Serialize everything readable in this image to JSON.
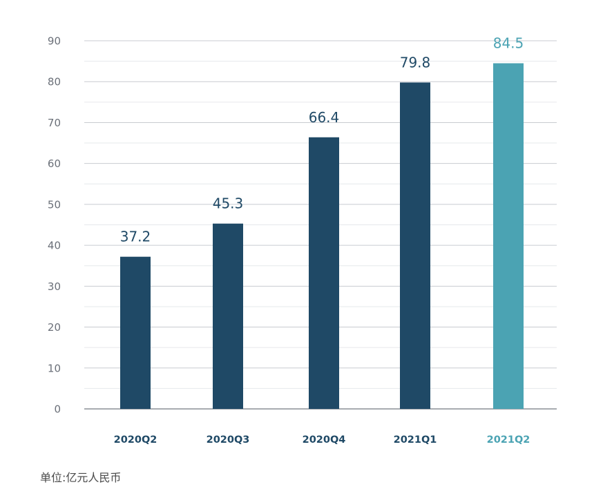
{
  "chart_data": {
    "type": "bar",
    "categories": [
      "2020Q2",
      "2020Q3",
      "2020Q4",
      "2021Q1",
      "2021Q2"
    ],
    "values": [
      37.2,
      45.3,
      66.4,
      79.8,
      84.5
    ],
    "data_labels": [
      "37.2",
      "45.3",
      "66.4",
      "79.8",
      "84.5"
    ],
    "ylim": [
      0,
      90
    ],
    "yticks": [
      "0",
      "10",
      "20",
      "30",
      "40",
      "50",
      "60",
      "70",
      "80",
      "90"
    ],
    "grid": true,
    "highlight_index": 4
  },
  "unit_note": "单位:亿元人民币",
  "colors": {
    "bar": "#1f4966",
    "bar_highlight": "#4ba3b3",
    "label": "#1f4966",
    "label_highlight": "#4ba3b3",
    "grid_major": "#c8cbd0",
    "grid_minor": "#e6e8eb",
    "axis": "#8a8f96",
    "ytick": "#6a6f78"
  }
}
